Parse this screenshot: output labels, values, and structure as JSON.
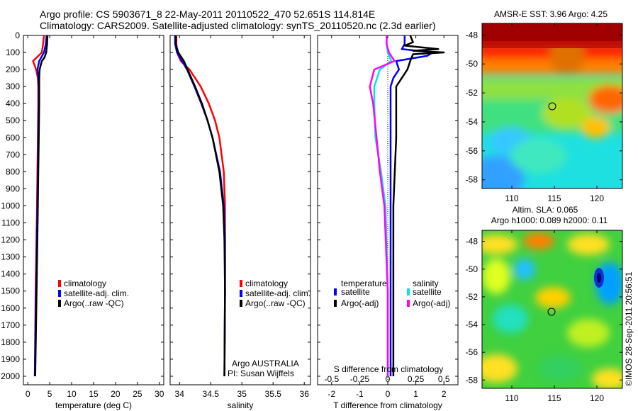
{
  "header": {
    "title_line1": "Argo profile: CS 5903671_8 22-May-2011 20110522_470 52.651S 114.814E",
    "title_line2": "Climatology: CARS2009. Satellite-adjusted climatology: synTS_20110520.nc (2.3d earlier)"
  },
  "colors": {
    "climatology": "#ff0000",
    "satellite": "#0000ff",
    "argo": "#000000",
    "sal_satellite": "#00e5e5",
    "sal_argo": "#ff00ff"
  },
  "legend": {
    "climatology": "climatology",
    "satellite_adj": "satellite-adj. clim.",
    "argo_raw": "Argo(..raw -QC)",
    "temperature_head": "temperature",
    "salinity_head": "salinity",
    "satellite": "satellite",
    "argo_adj": "Argo(-adj)"
  },
  "credit": {
    "line1": "Argo AUSTRALIA",
    "line2": "PI: Susan Wijffels",
    "imos": "©IMOS 28-Sep-2011 20:56:51"
  },
  "maps": {
    "sst_title": "AMSR-E SST: 3.96 Argo: 4.25",
    "sla_title1": "Altim. SLA: 0.065",
    "sla_title2": "Argo h1000: 0.089 h2000: 0.11",
    "y_ticks": [
      "-48",
      "-50",
      "-52",
      "-54",
      "-56",
      "-58"
    ],
    "x_ticks": [
      "110",
      "115",
      "120"
    ],
    "argo_lon": 114.814,
    "argo_lat": -52.651
  },
  "chart_data": [
    {
      "type": "line",
      "xlabel": "temperature (deg C)",
      "ylabel": "",
      "xlim": [
        -1,
        31
      ],
      "ylim": [
        2050,
        0
      ],
      "x_ticks": [
        "0",
        "5",
        "10",
        "15",
        "20",
        "25",
        "30"
      ],
      "y_ticks": [
        "0",
        "100",
        "200",
        "300",
        "400",
        "500",
        "600",
        "700",
        "800",
        "900",
        "1000",
        "1100",
        "1200",
        "1300",
        "1400",
        "1500",
        "1600",
        "1700",
        "1800",
        "1900",
        "2000"
      ],
      "series": [
        {
          "name": "climatology",
          "depth": [
            0,
            50,
            100,
            150,
            200,
            250,
            300,
            400,
            600,
            800,
            1000,
            1500,
            2000
          ],
          "values": [
            3.7,
            3.5,
            3.2,
            1.2,
            1.9,
            2.3,
            2.4,
            2.4,
            2.3,
            2.2,
            2.1,
            1.8,
            1.6
          ]
        },
        {
          "name": "satellite-adj. clim.",
          "depth": [
            0,
            50,
            100,
            150,
            200,
            250,
            300,
            400,
            600,
            800,
            1000,
            1500,
            2000
          ],
          "values": [
            4.3,
            4.1,
            3.7,
            2.6,
            2.2,
            2.4,
            2.5,
            2.5,
            2.4,
            2.3,
            2.2,
            1.9,
            1.6
          ]
        },
        {
          "name": "Argo(..raw -QC)",
          "depth": [
            0,
            50,
            100,
            130,
            150,
            200,
            250,
            300,
            400,
            600,
            800,
            1000,
            1500,
            2000
          ],
          "values": [
            4.5,
            4.4,
            4.2,
            3.8,
            3.2,
            2.7,
            2.6,
            2.6,
            2.6,
            2.5,
            2.4,
            2.3,
            2.0,
            1.7
          ]
        }
      ]
    },
    {
      "type": "line",
      "xlabel": "salinity",
      "xlim": [
        33.85,
        36.1
      ],
      "ylim": [
        2050,
        0
      ],
      "x_ticks": [
        "34",
        "34.5",
        "35",
        "35.5",
        "36"
      ],
      "series": [
        {
          "name": "climatology",
          "depth": [
            0,
            50,
            100,
            150,
            200,
            300,
            400,
            500,
            600,
            800,
            1000,
            1200,
            1500,
            2000
          ],
          "values": [
            33.95,
            33.95,
            33.96,
            34.02,
            34.16,
            34.34,
            34.47,
            34.57,
            34.64,
            34.71,
            34.73,
            34.73,
            34.73,
            34.72
          ]
        },
        {
          "name": "satellite-adj. clim.",
          "depth": [
            0,
            50,
            100,
            150,
            200,
            300,
            400,
            500,
            600,
            800,
            1000,
            1200,
            1500,
            2000
          ],
          "values": [
            33.93,
            33.93,
            33.96,
            34.04,
            34.12,
            34.24,
            34.35,
            34.45,
            34.53,
            34.65,
            34.71,
            34.73,
            34.73,
            34.72
          ]
        },
        {
          "name": "Argo(..raw -QC)",
          "depth": [
            0,
            50,
            100,
            150,
            200,
            300,
            400,
            500,
            600,
            800,
            1000,
            1200,
            1500,
            2000
          ],
          "values": [
            33.94,
            33.94,
            33.98,
            34.07,
            34.13,
            34.25,
            34.36,
            34.45,
            34.53,
            34.64,
            34.7,
            34.72,
            34.73,
            34.72
          ]
        }
      ]
    },
    {
      "type": "line",
      "xlabel": "T difference from climatology",
      "x2label": "S difference from climatology",
      "xlim": [
        -2.5,
        2.5
      ],
      "ylim": [
        2050,
        0
      ],
      "x_ticks": [
        "-2",
        "-1",
        "0",
        "1",
        "2"
      ],
      "x2_ticks": [
        "-0.5",
        "-0.25",
        "0",
        "0.25",
        "0.5"
      ],
      "series": [
        {
          "name": "temperature satellite",
          "depth": [
            0,
            50,
            80,
            100,
            120,
            150,
            200,
            250,
            300,
            400,
            600,
            1000,
            1500,
            2000
          ],
          "values": [
            0.6,
            0.6,
            0.5,
            1.6,
            1.4,
            0.3,
            0.4,
            0.2,
            0.1,
            0.1,
            0.1,
            0.1,
            0.1,
            0.1
          ]
        },
        {
          "name": "temperature Argo(-adj)",
          "depth": [
            0,
            40,
            60,
            80,
            90,
            100,
            110,
            150,
            200,
            250,
            300,
            400,
            600,
            1000,
            1500,
            2000
          ],
          "values": [
            0.8,
            0.9,
            0.6,
            1.8,
            0.9,
            2.0,
            0.9,
            0.8,
            0.7,
            0.5,
            0.3,
            0.3,
            0.3,
            0.2,
            0.2,
            0.2
          ]
        },
        {
          "name": "salinity satellite",
          "depth": [
            0,
            50,
            100,
            150,
            200,
            300,
            400,
            600,
            800,
            1000,
            1500,
            2000
          ],
          "values": [
            -0.01,
            -0.01,
            0.0,
            0.03,
            -0.07,
            -0.12,
            -0.12,
            -0.11,
            -0.06,
            -0.02,
            0.0,
            0.0
          ]
        },
        {
          "name": "salinity Argo(-adj)",
          "depth": [
            0,
            50,
            100,
            150,
            200,
            300,
            400,
            600,
            800,
            1000,
            1500,
            2000
          ],
          "values": [
            -0.01,
            -0.01,
            0.01,
            0.06,
            -0.12,
            -0.16,
            -0.13,
            -0.1,
            -0.07,
            -0.03,
            0.0,
            0.0
          ]
        }
      ]
    }
  ]
}
